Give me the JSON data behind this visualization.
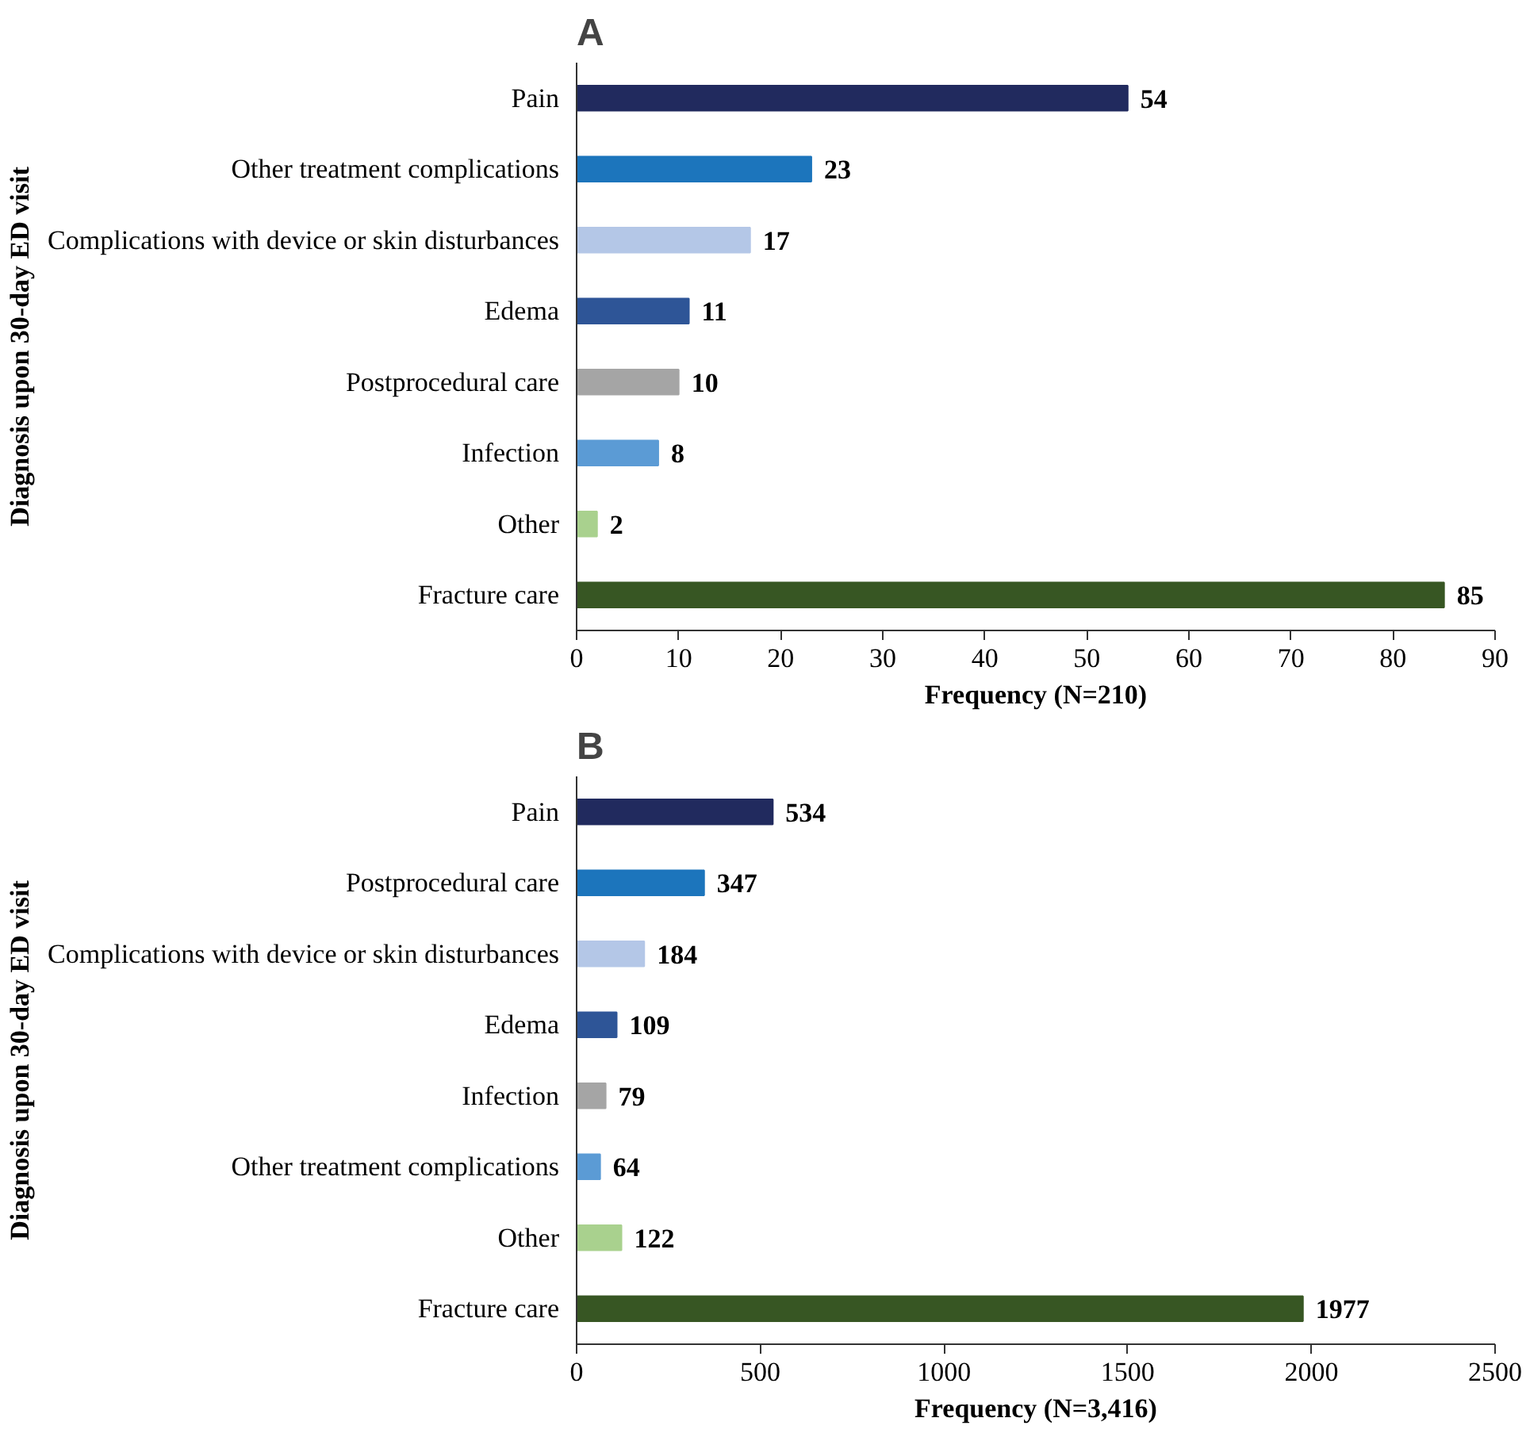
{
  "chart_data": [
    {
      "type": "bar",
      "orientation": "horizontal",
      "annotations": [
        "A"
      ],
      "xlabel": "Frequency (N=210)",
      "ylabel": "Diagnosis upon 30-day ED visit",
      "categories": [
        "Pain",
        "Other treatment complications",
        "Complications with device or skin disturbances",
        "Edema",
        "Postprocedural care",
        "Infection",
        "Other",
        "Fracture care"
      ],
      "values": [
        54,
        23,
        17,
        11,
        10,
        8,
        2,
        85
      ],
      "colors": [
        "#212a5e",
        "#1c75bc",
        "#b4c7e7",
        "#2e5597",
        "#a5a5a5",
        "#5b9bd5",
        "#a9d18e",
        "#375623"
      ],
      "xlim": [
        0,
        90
      ],
      "xticks": [
        0,
        10,
        20,
        30,
        40,
        50,
        60,
        70,
        80,
        90
      ],
      "data_labels": true,
      "grid": false
    },
    {
      "type": "bar",
      "orientation": "horizontal",
      "annotations": [
        "B"
      ],
      "xlabel": "Frequency (N=3,416)",
      "ylabel": "Diagnosis upon 30-day ED visit",
      "categories": [
        "Pain",
        "Postprocedural care",
        "Complications with device or skin disturbances",
        "Edema",
        "Infection",
        "Other treatment complications",
        "Other",
        "Fracture care"
      ],
      "values": [
        534,
        347,
        184,
        109,
        79,
        64,
        122,
        1977
      ],
      "colors": [
        "#212a5e",
        "#1c75bc",
        "#b4c7e7",
        "#2e5597",
        "#a5a5a5",
        "#5b9bd5",
        "#a9d18e",
        "#375623"
      ],
      "xlim": [
        0,
        2500
      ],
      "xticks": [
        0,
        500,
        1000,
        1500,
        2000,
        2500
      ],
      "data_labels": true,
      "grid": false
    }
  ]
}
